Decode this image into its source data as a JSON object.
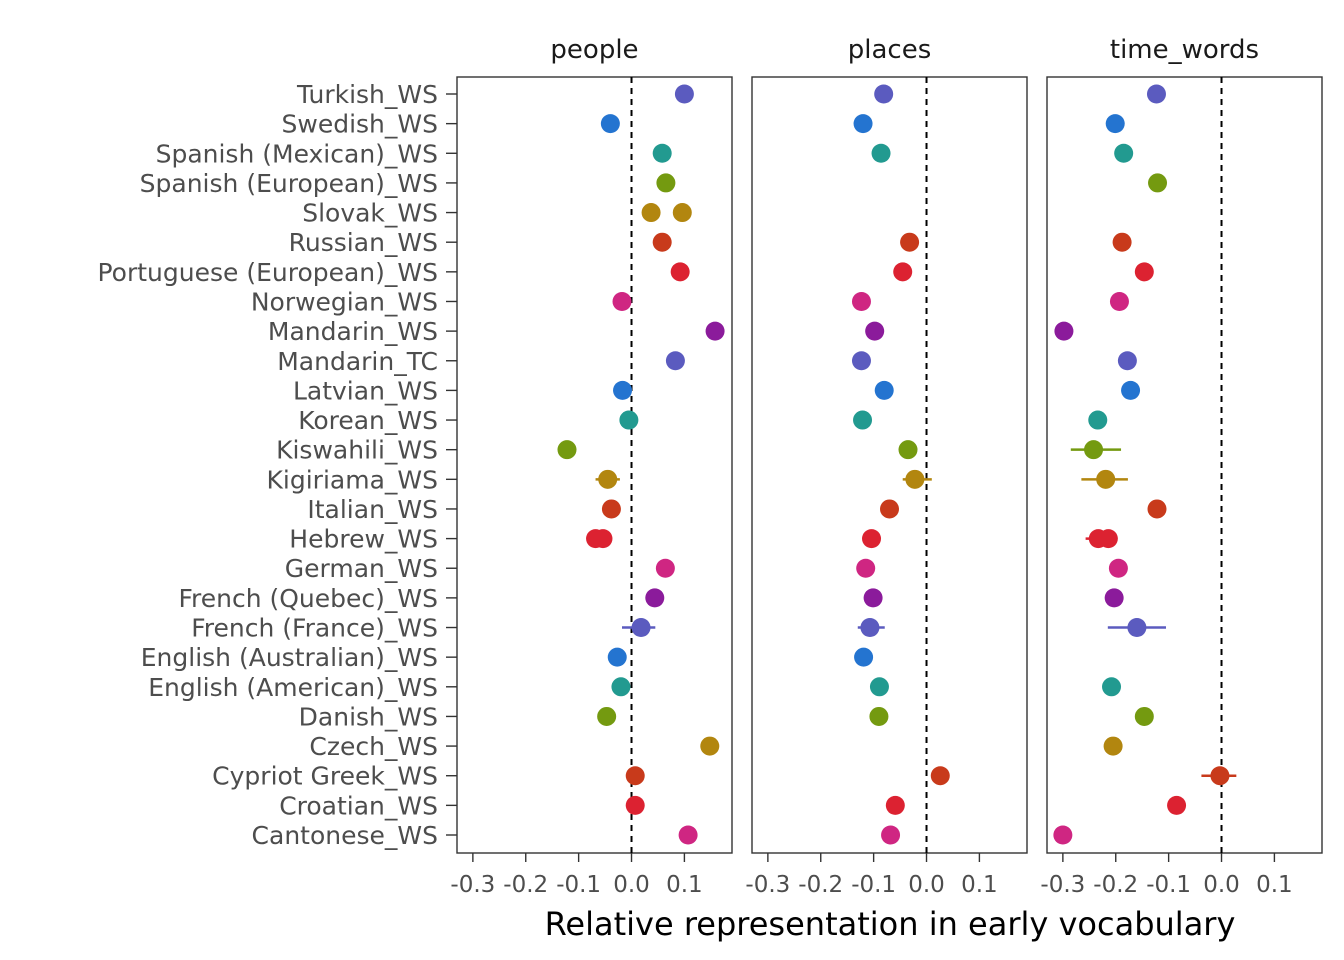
{
  "chart_data": {
    "type": "scatter",
    "facet_by": "category",
    "xlabel": "Relative representation in early vocabulary",
    "ylabel": "",
    "xlim": [
      -0.33,
      0.19
    ],
    "xticks": [
      -0.3,
      -0.2,
      -0.1,
      0.0,
      0.1
    ],
    "xtick_labels": [
      "-0.3",
      "-0.2",
      "-0.1",
      "0.0",
      "0.1"
    ],
    "reference_line_x": 0,
    "grid": false,
    "legend": "none",
    "panels": [
      "people",
      "places",
      "time_words"
    ],
    "languages": [
      "Turkish_WS",
      "Swedish_WS",
      "Spanish (Mexican)_WS",
      "Spanish (European)_WS",
      "Slovak_WS",
      "Russian_WS",
      "Portuguese (European)_WS",
      "Norwegian_WS",
      "Mandarin_WS",
      "Mandarin_TC",
      "Latvian_WS",
      "Korean_WS",
      "Kiswahili_WS",
      "Kigiriama_WS",
      "Italian_WS",
      "Hebrew_WS",
      "German_WS",
      "French (Quebec)_WS",
      "French (France)_WS",
      "English (Australian)_WS",
      "English (American)_WS",
      "Danish_WS",
      "Czech_WS",
      "Cypriot Greek_WS",
      "Croatian_WS",
      "Cantonese_WS"
    ],
    "colors": {
      "Turkish_WS": "#5b5bbf",
      "Swedish_WS": "#2474d0",
      "Spanish (Mexican)_WS": "#229a90",
      "Spanish (European)_WS": "#749a10",
      "Slovak_WS": "#b2860f",
      "Russian_WS": "#c83a1b",
      "Portuguese (European)_WS": "#dc2231",
      "Norwegian_WS": "#cf2682",
      "Mandarin_WS": "#8b1b9b",
      "Mandarin_TC": "#5b5bbf",
      "Latvian_WS": "#2474d0",
      "Korean_WS": "#229a90",
      "Kiswahili_WS": "#749a10",
      "Kigiriama_WS": "#b2860f",
      "Italian_WS": "#c83a1b",
      "Hebrew_WS": "#dc2231",
      "German_WS": "#cf2682",
      "French (Quebec)_WS": "#8b1b9b",
      "French (France)_WS": "#5b5bbf",
      "English (Australian)_WS": "#2474d0",
      "English (American)_WS": "#229a90",
      "Danish_WS": "#749a10",
      "Czech_WS": "#b2860f",
      "Cypriot Greek_WS": "#c83a1b",
      "Croatian_WS": "#dc2231",
      "Cantonese_WS": "#cf2682"
    },
    "points": {
      "people": [
        {
          "language": "Turkish_WS",
          "x": 0.1
        },
        {
          "language": "Swedish_WS",
          "x": -0.04
        },
        {
          "language": "Spanish (Mexican)_WS",
          "x": 0.058
        },
        {
          "language": "Spanish (European)_WS",
          "x": 0.065
        },
        {
          "language": "Slovak_WS",
          "x": 0.037
        },
        {
          "language": "Slovak_WS",
          "x": 0.096
        },
        {
          "language": "Russian_WS",
          "x": 0.058
        },
        {
          "language": "Portuguese (European)_WS",
          "x": 0.092
        },
        {
          "language": "Norwegian_WS",
          "x": -0.018
        },
        {
          "language": "Mandarin_WS",
          "x": 0.158
        },
        {
          "language": "Mandarin_TC",
          "x": 0.083
        },
        {
          "language": "Latvian_WS",
          "x": -0.017
        },
        {
          "language": "Korean_WS",
          "x": -0.005
        },
        {
          "language": "Kiswahili_WS",
          "x": -0.122,
          "xmin": -0.135,
          "xmax": -0.105
        },
        {
          "language": "Kigiriama_WS",
          "x": -0.045,
          "xmin": -0.068,
          "xmax": -0.022
        },
        {
          "language": "Italian_WS",
          "x": -0.038
        },
        {
          "language": "Hebrew_WS",
          "x": -0.068,
          "xmin": -0.082,
          "xmax": -0.048
        },
        {
          "language": "Hebrew_WS",
          "x": -0.054
        },
        {
          "language": "German_WS",
          "x": 0.064
        },
        {
          "language": "French (Quebec)_WS",
          "x": 0.044
        },
        {
          "language": "French (France)_WS",
          "x": 0.018,
          "xmin": -0.018,
          "xmax": 0.045
        },
        {
          "language": "English (Australian)_WS",
          "x": -0.027
        },
        {
          "language": "English (American)_WS",
          "x": -0.02
        },
        {
          "language": "Danish_WS",
          "x": -0.047
        },
        {
          "language": "Czech_WS",
          "x": 0.148
        },
        {
          "language": "Cypriot Greek_WS",
          "x": 0.007
        },
        {
          "language": "Croatian_WS",
          "x": 0.007
        },
        {
          "language": "Cantonese_WS",
          "x": 0.107
        }
      ],
      "places": [
        {
          "language": "Turkish_WS",
          "x": -0.081
        },
        {
          "language": "Swedish_WS",
          "x": -0.12
        },
        {
          "language": "Spanish (Mexican)_WS",
          "x": -0.086
        },
        {
          "language": "Spanish (European)_WS",
          "x": null
        },
        {
          "language": "Slovak_WS",
          "x": null
        },
        {
          "language": "Russian_WS",
          "x": -0.032
        },
        {
          "language": "Portuguese (European)_WS",
          "x": -0.045
        },
        {
          "language": "Norwegian_WS",
          "x": -0.123
        },
        {
          "language": "Mandarin_WS",
          "x": -0.098
        },
        {
          "language": "Mandarin_TC",
          "x": -0.123
        },
        {
          "language": "Latvian_WS",
          "x": -0.08
        },
        {
          "language": "Korean_WS",
          "x": -0.121
        },
        {
          "language": "Kiswahili_WS",
          "x": -0.035,
          "xmin": -0.048,
          "xmax": -0.02
        },
        {
          "language": "Kigiriama_WS",
          "x": -0.022,
          "xmin": -0.045,
          "xmax": 0.01
        },
        {
          "language": "Italian_WS",
          "x": -0.07
        },
        {
          "language": "Hebrew_WS",
          "x": -0.104
        },
        {
          "language": "German_WS",
          "x": -0.115
        },
        {
          "language": "French (Quebec)_WS",
          "x": -0.101
        },
        {
          "language": "French (France)_WS",
          "x": -0.107,
          "xmin": -0.13,
          "xmax": -0.079
        },
        {
          "language": "English (Australian)_WS",
          "x": -0.119
        },
        {
          "language": "English (American)_WS",
          "x": -0.089
        },
        {
          "language": "Danish_WS",
          "x": -0.09
        },
        {
          "language": "Czech_WS",
          "x": null
        },
        {
          "language": "Cypriot Greek_WS",
          "x": 0.026,
          "xmin": 0.015,
          "xmax": 0.04
        },
        {
          "language": "Croatian_WS",
          "x": -0.059
        },
        {
          "language": "Cantonese_WS",
          "x": -0.068
        }
      ],
      "time_words": [
        {
          "language": "Turkish_WS",
          "x": -0.123
        },
        {
          "language": "Swedish_WS",
          "x": -0.201
        },
        {
          "language": "Spanish (Mexican)_WS",
          "x": -0.185
        },
        {
          "language": "Spanish (European)_WS",
          "x": -0.121
        },
        {
          "language": "Slovak_WS",
          "x": null
        },
        {
          "language": "Russian_WS",
          "x": -0.188
        },
        {
          "language": "Portuguese (European)_WS",
          "x": -0.146
        },
        {
          "language": "Norwegian_WS",
          "x": -0.193
        },
        {
          "language": "Mandarin_WS",
          "x": -0.298
        },
        {
          "language": "Mandarin_TC",
          "x": -0.178,
          "xmin": -0.19,
          "xmax": -0.165
        },
        {
          "language": "Latvian_WS",
          "x": -0.172
        },
        {
          "language": "Korean_WS",
          "x": -0.234,
          "xmin": -0.248,
          "xmax": -0.22
        },
        {
          "language": "Kiswahili_WS",
          "x": -0.242,
          "xmin": -0.285,
          "xmax": -0.19
        },
        {
          "language": "Kigiriama_WS",
          "x": -0.219,
          "xmin": -0.265,
          "xmax": -0.177
        },
        {
          "language": "Italian_WS",
          "x": -0.122
        },
        {
          "language": "Hebrew_WS",
          "x": -0.233,
          "xmin": -0.257,
          "xmax": -0.215
        },
        {
          "language": "Hebrew_WS",
          "x": -0.214
        },
        {
          "language": "German_WS",
          "x": -0.195
        },
        {
          "language": "French (Quebec)_WS",
          "x": -0.203
        },
        {
          "language": "French (France)_WS",
          "x": -0.16,
          "xmin": -0.215,
          "xmax": -0.105
        },
        {
          "language": "English (Australian)_WS",
          "x": null
        },
        {
          "language": "English (American)_WS",
          "x": -0.208
        },
        {
          "language": "Danish_WS",
          "x": -0.146
        },
        {
          "language": "Czech_WS",
          "x": -0.205
        },
        {
          "language": "Cypriot Greek_WS",
          "x": -0.003,
          "xmin": -0.038,
          "xmax": 0.028
        },
        {
          "language": "Croatian_WS",
          "x": -0.085
        },
        {
          "language": "Cantonese_WS",
          "x": -0.3
        }
      ]
    }
  }
}
